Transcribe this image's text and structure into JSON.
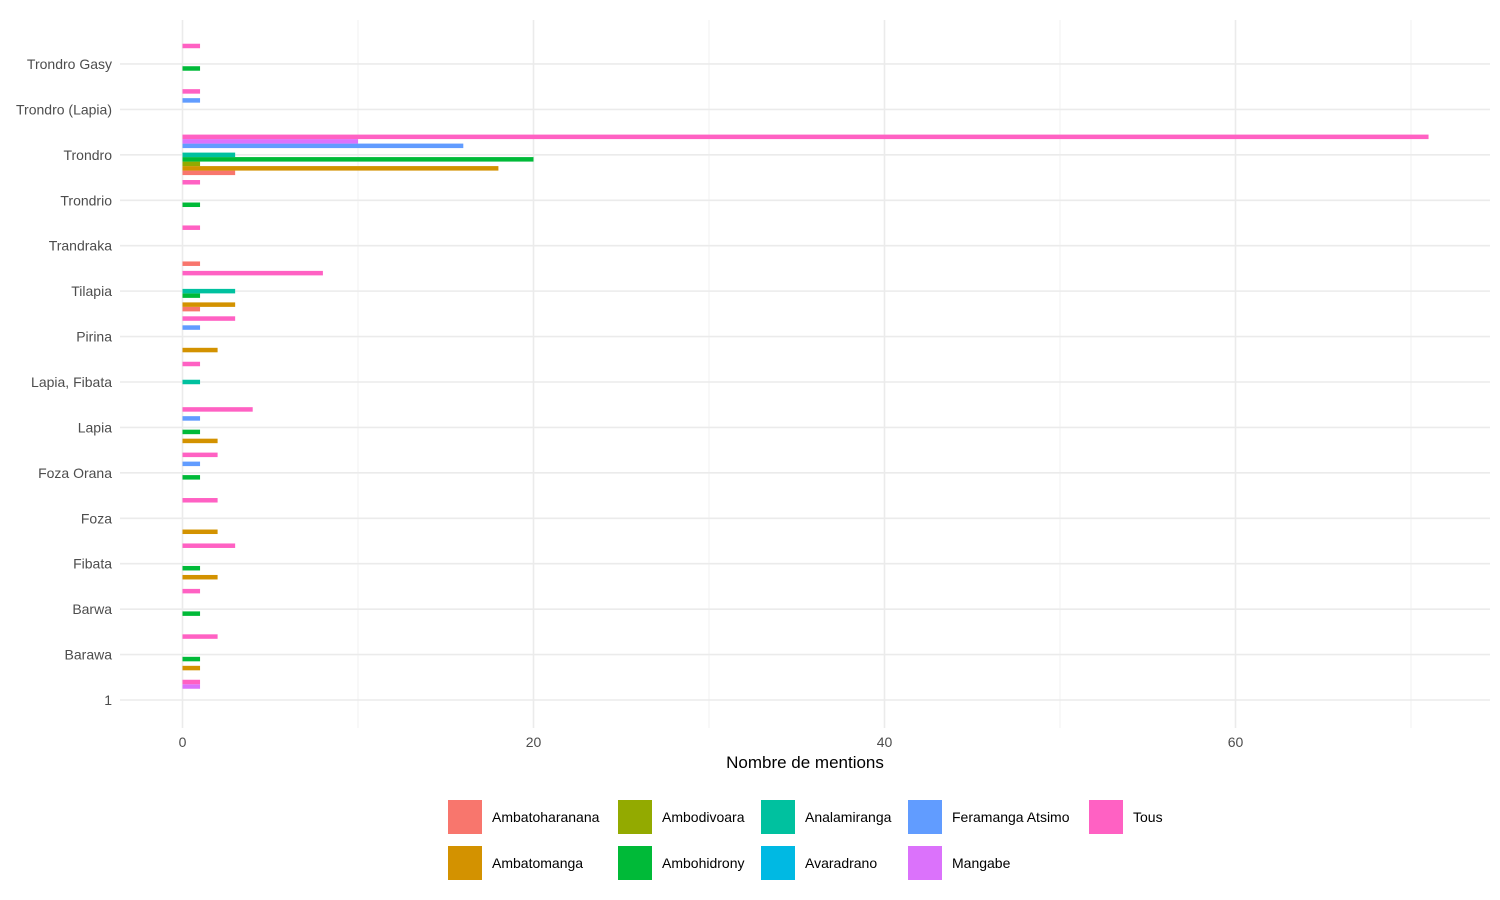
{
  "chart_data": {
    "type": "bar",
    "orientation": "horizontal",
    "xlabel": "Nombre de mentions",
    "ylabel": "",
    "xlim": [
      -3.6,
      74.0
    ],
    "xticks": [
      0,
      20,
      40,
      60
    ],
    "grid": true,
    "legend_position": "bottom",
    "categories": [
      "1",
      "Barawa",
      "Barwa",
      "Fibata",
      "Foza",
      "Foza Orana",
      "Lapia",
      "Lapia, Fibata",
      "Pirina",
      "Tilapia",
      "Trandraka",
      "Trondrio",
      "Trondro",
      "Trondro (Lapia)",
      "Trondro Gasy"
    ],
    "series": [
      {
        "name": "Ambatoharanana",
        "color": "#F8766D",
        "values": [
          0,
          0,
          0,
          0,
          0,
          0,
          0,
          0,
          0,
          1,
          1,
          0,
          3,
          0,
          0
        ]
      },
      {
        "name": "Ambatomanga",
        "color": "#D39200",
        "values": [
          0,
          1,
          0,
          2,
          2,
          0,
          2,
          0,
          2,
          3,
          0,
          0,
          18,
          0,
          0
        ]
      },
      {
        "name": "Ambodivoara",
        "color": "#93AA00",
        "values": [
          0,
          0,
          0,
          0,
          0,
          0,
          0,
          0,
          0,
          0,
          0,
          0,
          1,
          0,
          0
        ]
      },
      {
        "name": "Ambohidrony",
        "color": "#00BA38",
        "values": [
          0,
          1,
          1,
          1,
          0,
          1,
          1,
          0,
          0,
          1,
          0,
          1,
          20,
          0,
          1
        ]
      },
      {
        "name": "Analamiranga",
        "color": "#00C19F",
        "values": [
          0,
          0,
          0,
          0,
          0,
          0,
          0,
          1,
          0,
          3,
          0,
          0,
          3,
          0,
          0
        ]
      },
      {
        "name": "Avaradrano",
        "color": "#00B9E3",
        "values": [
          0,
          0,
          0,
          0,
          0,
          0,
          0,
          0,
          0,
          0,
          0,
          0,
          0,
          0,
          0
        ]
      },
      {
        "name": "Feramanga Atsimo",
        "color": "#619CFF",
        "values": [
          0,
          0,
          0,
          0,
          0,
          1,
          1,
          0,
          1,
          0,
          0,
          0,
          16,
          1,
          0
        ]
      },
      {
        "name": "Mangabe",
        "color": "#DB72FB",
        "values": [
          1,
          0,
          0,
          0,
          0,
          0,
          0,
          0,
          0,
          0,
          0,
          0,
          10,
          0,
          0
        ]
      },
      {
        "name": "Tous",
        "color": "#FF61C3",
        "values": [
          1,
          2,
          1,
          3,
          2,
          2,
          4,
          1,
          3,
          8,
          1,
          1,
          71,
          1,
          1
        ]
      }
    ]
  }
}
